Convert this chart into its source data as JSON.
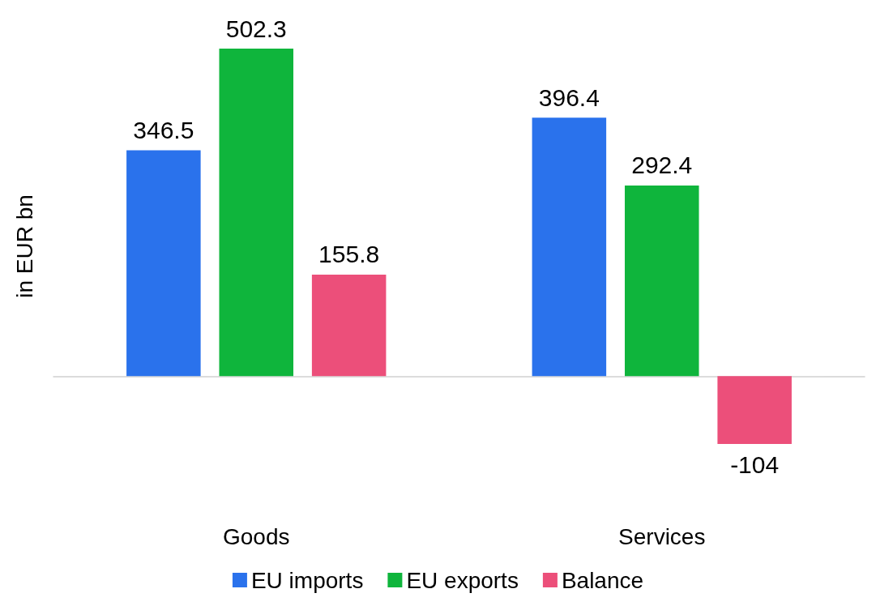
{
  "chart_data": {
    "type": "bar",
    "ylabel": "in EUR bn",
    "categories": [
      "Goods",
      "Services"
    ],
    "series": [
      {
        "name": "EU imports",
        "color": "#2a72ec",
        "values": [
          346.5,
          396.4
        ]
      },
      {
        "name": "EU exports",
        "color": "#0fb53c",
        "values": [
          502.3,
          292.4
        ]
      },
      {
        "name": "Balance",
        "color": "#ec4f7a",
        "values": [
          155.8,
          -104
        ]
      }
    ],
    "data_labels": true,
    "grid": false,
    "legend": "bottom"
  }
}
